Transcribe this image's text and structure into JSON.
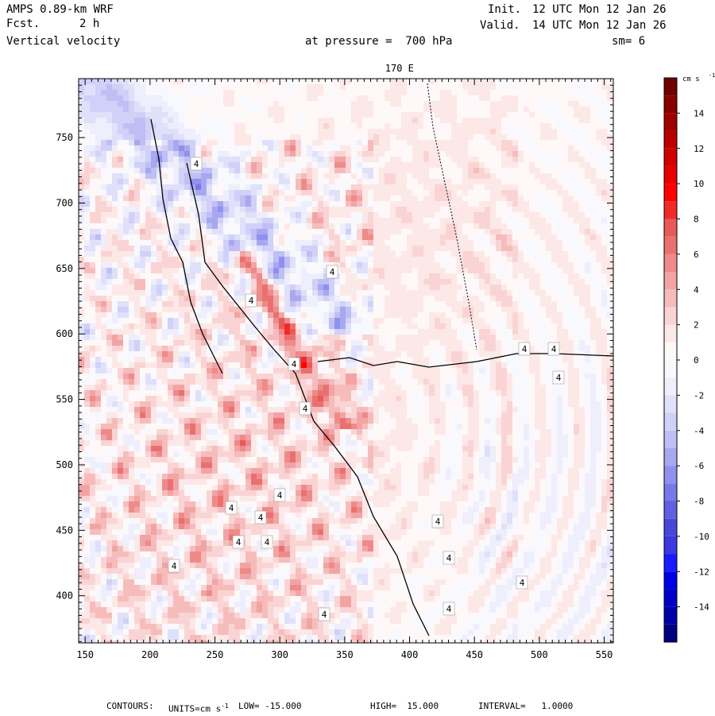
{
  "header": {
    "model": "AMPS 0.89-km WRF",
    "fcst_label": "Fcst.",
    "fcst_value": "2 h",
    "field": "Vertical velocity",
    "init_label": "Init.",
    "init_value": "12 UTC Mon 12 Jan 26",
    "valid_label": "Valid.",
    "valid_value": "14 UTC Mon 12 Jan 26",
    "pressure_text": "at pressure =  700 hPa",
    "smooth_text": "sm= 6"
  },
  "footer": {
    "contours": "CONTOURS:",
    "units": "UNITS=cm s",
    "units_sup": "-1",
    "low": "LOW= -15.000",
    "high": "HIGH=  15.000",
    "interval": "INTERVAL=   1.0000"
  },
  "chart_data": {
    "type": "heatmap",
    "title": "Vertical velocity",
    "top_axis_label": "170 E",
    "x_ticks": [
      "150",
      "200",
      "250",
      "300",
      "350",
      "400",
      "450",
      "500",
      "550"
    ],
    "x_tick_values": [
      150,
      200,
      250,
      300,
      350,
      400,
      450,
      500,
      550
    ],
    "y_ticks": [
      "400",
      "450",
      "500",
      "550",
      "600",
      "650",
      "700",
      "750"
    ],
    "y_tick_values": [
      400,
      450,
      500,
      550,
      600,
      650,
      700,
      750
    ],
    "xlim": [
      145,
      557
    ],
    "ylim": [
      364,
      795
    ],
    "colorbar": {
      "units": "cm s",
      "units_sup": "-1",
      "range": [
        -16,
        16
      ],
      "tick_labels": [
        "14",
        "12",
        "10",
        "8",
        "6",
        "4",
        "2",
        "0",
        "-2",
        "-4",
        "-6",
        "-8",
        "-10",
        "-12",
        "-14"
      ],
      "tick_values": [
        14,
        12,
        10,
        8,
        6,
        4,
        2,
        0,
        -2,
        -4,
        -6,
        -8,
        -10,
        -12,
        -14
      ],
      "colors": [
        "#000080",
        "#0000a8",
        "#0000c8",
        "#0000e6",
        "#1a1aff",
        "#3a3ae0",
        "#4848d8",
        "#6060e0",
        "#7878e8",
        "#9090f0",
        "#a8a8f0",
        "#bfbff5",
        "#d0d0f8",
        "#e0e0fa",
        "#eeeefc",
        "#f8f8ff",
        "#fff8f8",
        "#fde8e8",
        "#fad4d4",
        "#f6bcbc",
        "#f2a4a4",
        "#ee8a8a",
        "#ea7070",
        "#e85a5a",
        "#f02a2a",
        "#ff0000",
        "#e80000",
        "#d00000",
        "#b80000",
        "#a00000",
        "#880000",
        "#700000"
      ]
    },
    "contour_label": "4"
  }
}
